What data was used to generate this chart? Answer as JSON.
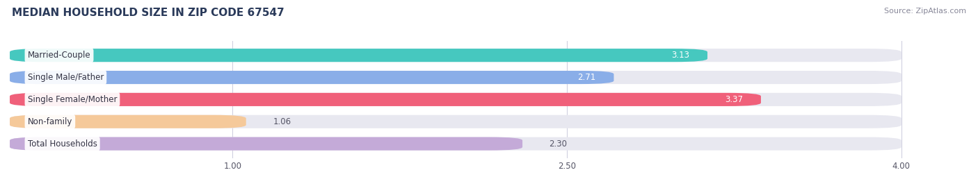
{
  "title": "MEDIAN HOUSEHOLD SIZE IN ZIP CODE 67547",
  "source": "Source: ZipAtlas.com",
  "categories": [
    "Married-Couple",
    "Single Male/Father",
    "Single Female/Mother",
    "Non-family",
    "Total Households"
  ],
  "values": [
    3.13,
    2.71,
    3.37,
    1.06,
    2.3
  ],
  "colors": [
    "#46c8bf",
    "#8aaee8",
    "#f0607a",
    "#f5c99a",
    "#c4aad8"
  ],
  "bar_bg_color": "#e8e8f0",
  "row_bg_color": "#f2f2f8",
  "xlim": [
    0,
    4.3
  ],
  "xmin": 0,
  "xmax": 4.0,
  "xticks": [
    1.0,
    2.5,
    4.0
  ],
  "figsize": [
    14.06,
    2.68
  ],
  "dpi": 100,
  "bar_height": 0.6,
  "label_fontsize": 8.5,
  "value_fontsize": 8.5,
  "title_fontsize": 11,
  "source_fontsize": 8,
  "bg_color": "#ffffff",
  "grid_color": "#d0d0e0",
  "title_color": "#2a3a5a",
  "source_color": "#888899",
  "value_color_inside": "#555566",
  "value_color_white": "#ffffff"
}
